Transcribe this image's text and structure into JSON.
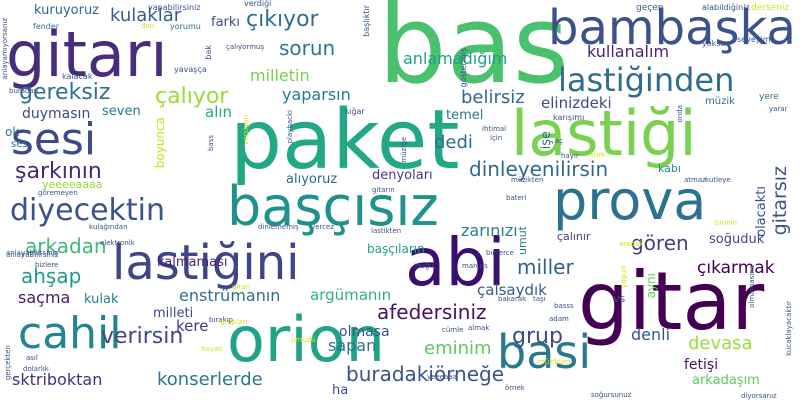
{
  "cloud": {
    "words": [
      {
        "text": "bas",
        "color": "#4ac16d"
      },
      {
        "text": "paket",
        "color": "#22a884"
      },
      {
        "text": "gitar",
        "color": "#440154"
      },
      {
        "text": "lastiği",
        "color": "#7ad151"
      },
      {
        "text": "gitarı",
        "color": "#472d7b"
      },
      {
        "text": "bambaşka",
        "color": "#3b528b"
      },
      {
        "text": "prova",
        "color": "#2c728e"
      },
      {
        "text": "başçısız",
        "color": "#21918c"
      },
      {
        "text": "orion",
        "color": "#20a386"
      },
      {
        "text": "abi",
        "color": "#3b0f70"
      },
      {
        "text": "sesi",
        "color": "#3e4989"
      },
      {
        "text": "lastiğini",
        "color": "#414487"
      },
      {
        "text": "cahil",
        "color": "#25858e"
      },
      {
        "text": "basi",
        "color": "#2a788e"
      },
      {
        "text": "diyecektin",
        "color": "#3b528b"
      },
      {
        "text": "lastiğinden",
        "color": "#2f6c8e"
      },
      {
        "text": "şarkının",
        "color": "#482878"
      },
      {
        "text": "gereksiz",
        "color": "#2c728e"
      },
      {
        "text": "çalıyor",
        "color": "#a0da39"
      },
      {
        "text": "çıkıyor",
        "color": "#2e6e8e"
      },
      {
        "text": "kulaklar",
        "color": "#375b8d"
      },
      {
        "text": "sorun",
        "color": "#2a768e"
      },
      {
        "text": "anlamadığım",
        "color": "#1fa187"
      },
      {
        "text": "milletin",
        "color": "#7ad151"
      },
      {
        "text": "kullanalım",
        "color": "#482374"
      },
      {
        "text": "yaparsın",
        "color": "#2a788e"
      },
      {
        "text": "belirsiz",
        "color": "#31688e"
      },
      {
        "text": "elinizdeki",
        "color": "#3e4a89"
      },
      {
        "text": "dedi",
        "color": "#2d708e"
      },
      {
        "text": "dinleyenilirsin",
        "color": "#31688e"
      },
      {
        "text": "gören",
        "color": "#433e85"
      },
      {
        "text": "arkadan",
        "color": "#3dbc74"
      },
      {
        "text": "zarınızı",
        "color": "#277f8e"
      },
      {
        "text": "ahşap",
        "color": "#1f9a8a"
      },
      {
        "text": "miller",
        "color": "#355f8d"
      },
      {
        "text": "çıkarmak",
        "color": "#440154"
      },
      {
        "text": "saçma",
        "color": "#48186a"
      },
      {
        "text": "enstrümanın",
        "color": "#2d708e"
      },
      {
        "text": "argümanın",
        "color": "#2db27d"
      },
      {
        "text": "grup",
        "color": "#3e4a89"
      },
      {
        "text": "afedersiniz",
        "color": "#471164"
      },
      {
        "text": "devasa",
        "color": "#a0da39"
      },
      {
        "text": "eminim",
        "color": "#5ec962"
      },
      {
        "text": "denli",
        "color": "#39568c"
      },
      {
        "text": "verirsin",
        "color": "#3f4788"
      },
      {
        "text": "sapan",
        "color": "#2c728e"
      },
      {
        "text": "buradakiörneğe",
        "color": "#3b528b"
      },
      {
        "text": "konserlerde",
        "color": "#2a788e"
      },
      {
        "text": "sktriboktan",
        "color": "#46307e"
      },
      {
        "text": "olmasa",
        "color": "#39568c"
      },
      {
        "text": "kere",
        "color": "#453781"
      },
      {
        "text": "kulak",
        "color": "#26828e"
      },
      {
        "text": "milleti",
        "color": "#404688"
      },
      {
        "text": "kalmaması",
        "color": "#481f70"
      },
      {
        "text": "başçıların",
        "color": "#1fa187"
      },
      {
        "text": "çalsaydık",
        "color": "#365c8d"
      },
      {
        "text": "soğuduk",
        "color": "#3f4788"
      },
      {
        "text": "denyoları",
        "color": "#443983"
      },
      {
        "text": "alıyoruz",
        "color": "#31688e"
      },
      {
        "text": "alın",
        "color": "#22a884"
      },
      {
        "text": "temel",
        "color": "#2c738e"
      },
      {
        "text": "seven",
        "color": "#2a788e"
      },
      {
        "text": "duymasın",
        "color": "#3e4a89"
      },
      {
        "text": "yeeeeaaaa",
        "color": "#9bd93c"
      },
      {
        "text": "kuruyoruz",
        "color": "#2f6b8e"
      },
      {
        "text": "farkı",
        "color": "#3c4f8a"
      },
      {
        "text": "fetişi",
        "color": "#471365"
      },
      {
        "text": "arkadaşım",
        "color": "#5ec962"
      },
      {
        "text": "ha",
        "color": "#3b528b"
      },
      {
        "text": "müzik",
        "color": "#2d708e"
      },
      {
        "text": "gitarsız",
        "color": "#3b528b"
      },
      {
        "text": "olacaktı",
        "color": "#3b528b"
      },
      {
        "text": "kabı",
        "color": "#25858e"
      },
      {
        "text": "umut",
        "color": "#277f8e"
      },
      {
        "text": "boyunca",
        "color": "#c8e020"
      },
      {
        "text": "ok",
        "color": "#2a788e"
      },
      {
        "text": "ses",
        "color": "#2a788e"
      },
      {
        "text": "yere",
        "color": "#2c728e"
      },
      {
        "text": "işe",
        "color": "#2c728e"
      },
      {
        "text": "vs",
        "color": "#3a538b"
      },
      {
        "text": "aynı",
        "color": "#6ccd5a"
      },
      {
        "text": "çalınır",
        "color": "#414487"
      },
      {
        "text": "seveyim",
        "color": "#3b528b"
      },
      {
        "text": "yoksun",
        "color": "#3b528b"
      },
      {
        "text": "alabildiğiniz",
        "color": "#3b528b"
      },
      {
        "text": "geçen",
        "color": "#3b528b"
      },
      {
        "text": "derseniz",
        "color": "#d2e21b"
      },
      {
        "text": "yapabilirsiniz",
        "color": "#3b528b"
      },
      {
        "text": "verdiği",
        "color": "#3b528b"
      },
      {
        "text": "yorumu",
        "color": "#2c728e"
      },
      {
        "text": "don",
        "color": "#d2e21b"
      },
      {
        "text": "fender",
        "color": "#2c728e"
      },
      {
        "text": "kalacak",
        "color": "#3b528b"
      },
      {
        "text": "yavaşça",
        "color": "#3b528b"
      },
      {
        "text": "bak",
        "color": "#3b528b"
      },
      {
        "text": "çalıyormuş",
        "color": "#3e4a89"
      },
      {
        "text": "başlıktır",
        "color": "#3b528b"
      },
      {
        "text": "göstermiş",
        "color": "#3b528b"
      },
      {
        "text": "anlayamıyorsanız",
        "color": "#3b528b"
      },
      {
        "text": "buradan",
        "color": "#3b528b"
      },
      {
        "text": "anlayaBİlirsiniz",
        "color": "#3b528b"
      },
      {
        "text": "playbacki",
        "color": "#3b528b"
      },
      {
        "text": "sığar",
        "color": "#3b528b"
      },
      {
        "text": "karışımı",
        "color": "#3b528b"
      },
      {
        "text": "ihtimal",
        "color": "#3b528b"
      },
      {
        "text": "için",
        "color": "#3b528b"
      },
      {
        "text": "onda",
        "color": "#3b528b"
      },
      {
        "text": "yarar",
        "color": "#3b528b"
      },
      {
        "text": "aç",
        "color": "#3b528b"
      },
      {
        "text": "müziğe",
        "color": "#3b528b"
      },
      {
        "text": "versiyon",
        "color": "#d2e21b"
      },
      {
        "text": "bass",
        "color": "#3b528b"
      },
      {
        "text": "müzikten",
        "color": "#3b528b"
      },
      {
        "text": "göremeyen",
        "color": "#3b528b"
      },
      {
        "text": "hayır",
        "color": "#3b528b"
      },
      {
        "text": "türk",
        "color": "#d2e21b"
      },
      {
        "text": "atmaz",
        "color": "#3b528b"
      },
      {
        "text": "kutleye",
        "color": "#3b528b"
      },
      {
        "text": "gitarın",
        "color": "#3b528b"
      },
      {
        "text": "bateri",
        "color": "#3b528b"
      },
      {
        "text": "kulağından",
        "color": "#3b528b"
      },
      {
        "text": "elektronik",
        "color": "#3b528b"
      },
      {
        "text": "dinlememiş",
        "color": "#3b528b"
      },
      {
        "text": "vercez",
        "color": "#3b528b"
      },
      {
        "text": "lastikten",
        "color": "#3b528b"
      },
      {
        "text": "aradaki",
        "color": "#d2e21b"
      },
      {
        "text": "birinin",
        "color": "#d2e21b"
      },
      {
        "text": "anlayabilirsiniz",
        "color": "#3b528b"
      },
      {
        "text": "bizlere",
        "color": "#3b528b"
      },
      {
        "text": "iduğu",
        "color": "#3b528b"
      },
      {
        "text": "marcus",
        "color": "#3b528b"
      },
      {
        "text": "binlerce",
        "color": "#3b528b"
      },
      {
        "text": "yoğurt",
        "color": "#d2e21b"
      },
      {
        "text": "olmamasına",
        "color": "#3b528b"
      },
      {
        "text": "bakarak",
        "color": "#3b528b"
      },
      {
        "text": "taşı",
        "color": "#3b528b"
      },
      {
        "text": "gitarı",
        "color": "#d2e21b"
      },
      {
        "text": "bırakıp",
        "color": "#3b528b"
      },
      {
        "text": "grupları",
        "color": "#d2e21b"
      },
      {
        "text": "basss",
        "color": "#3b528b"
      },
      {
        "text": "adam",
        "color": "#3b528b"
      },
      {
        "text": "almak",
        "color": "#3b528b"
      },
      {
        "text": "cümle",
        "color": "#3b528b"
      },
      {
        "text": "ümüdü",
        "color": "#d2e21b"
      },
      {
        "text": "hayati",
        "color": "#d2e21b"
      },
      {
        "text": "asıl",
        "color": "#3b528b"
      },
      {
        "text": "dolarlık",
        "color": "#3b528b"
      },
      {
        "text": "gerçekten",
        "color": "#3b528b"
      },
      {
        "text": "kucaklayacaktır",
        "color": "#3b528b"
      },
      {
        "text": "müzikten",
        "color": "#d2e21b"
      },
      {
        "text": "yeeeaaa",
        "color": "#3b528b"
      },
      {
        "text": "örnek",
        "color": "#3b528b"
      },
      {
        "text": "soğursunuz",
        "color": "#3b528b"
      },
      {
        "text": "diyorsanız",
        "color": "#3b528b"
      }
    ]
  }
}
